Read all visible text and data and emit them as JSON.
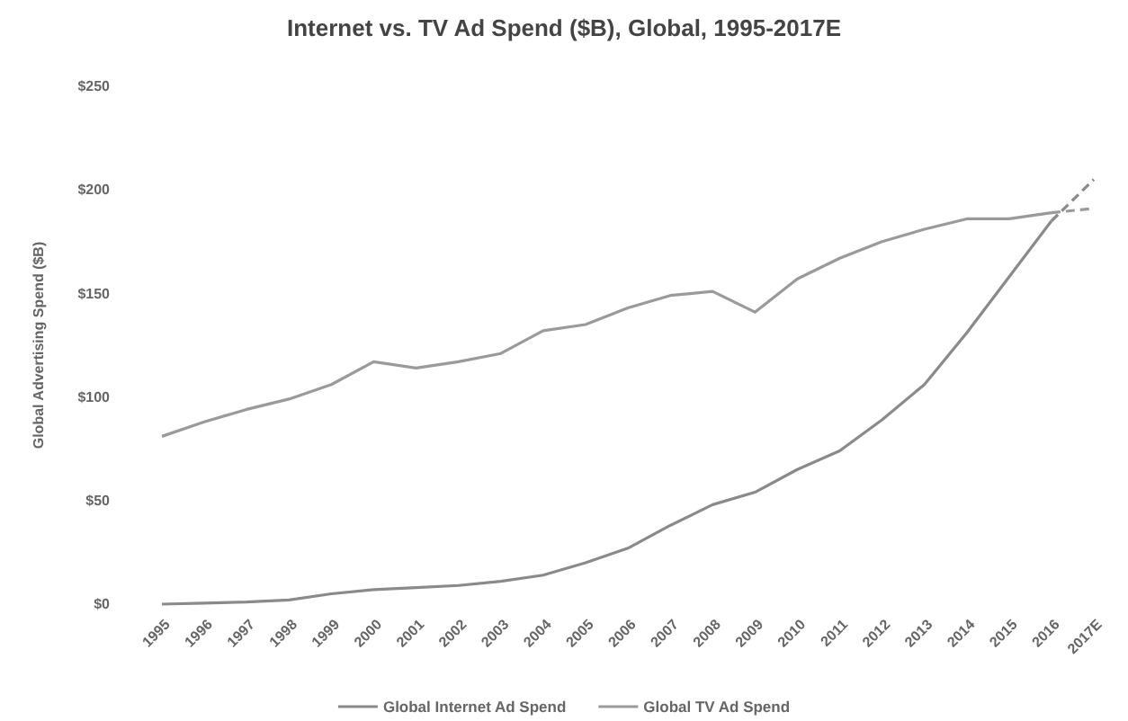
{
  "chart_data": {
    "type": "line",
    "title": "Internet vs. TV Ad Spend ($B), Global, 1995-2017E",
    "ylabel": "Global Advertising Spend ($B)",
    "categories": [
      "1995",
      "1996",
      "1997",
      "1998",
      "1999",
      "2000",
      "2001",
      "2002",
      "2003",
      "2004",
      "2005",
      "2006",
      "2007",
      "2008",
      "2009",
      "2010",
      "2011",
      "2012",
      "2013",
      "2014",
      "2015",
      "2016",
      "2017E"
    ],
    "series": [
      {
        "name": "Global Internet Ad Spend",
        "color": "#8a8a8a",
        "line_style": "solid",
        "values": [
          0,
          0.5,
          1,
          2,
          5,
          7,
          8,
          9,
          11,
          14,
          20,
          27,
          38,
          48,
          54,
          65,
          74,
          89,
          106,
          131,
          158,
          185,
          null
        ]
      },
      {
        "name": "Global TV Ad Spend",
        "color": "#9a9a9a",
        "line_style": "solid",
        "values": [
          81,
          88,
          94,
          99,
          106,
          117,
          114,
          117,
          121,
          132,
          135,
          143,
          149,
          151,
          141,
          157,
          167,
          175,
          181,
          186,
          186,
          189,
          null
        ]
      },
      {
        "color": "#8a8a8a",
        "line_style": "dashed",
        "values": [
          null,
          null,
          null,
          null,
          null,
          null,
          null,
          null,
          null,
          null,
          null,
          null,
          null,
          null,
          null,
          null,
          null,
          null,
          null,
          null,
          null,
          185,
          205
        ]
      },
      {
        "color": "#9a9a9a",
        "line_style": "dashed",
        "values": [
          null,
          null,
          null,
          null,
          null,
          null,
          null,
          null,
          null,
          null,
          null,
          null,
          null,
          null,
          null,
          null,
          null,
          null,
          null,
          null,
          null,
          189,
          191
        ]
      }
    ],
    "ylim": [
      0,
      250
    ],
    "yticks": [
      {
        "value": 0,
        "label": "$0"
      },
      {
        "value": 50,
        "label": "$50"
      },
      {
        "value": 100,
        "label": "$100"
      },
      {
        "value": 150,
        "label": "$150"
      },
      {
        "value": 200,
        "label": "$200"
      },
      {
        "value": 250,
        "label": "$250"
      }
    ],
    "grid": false,
    "legend": "bottom",
    "marker": "none"
  }
}
